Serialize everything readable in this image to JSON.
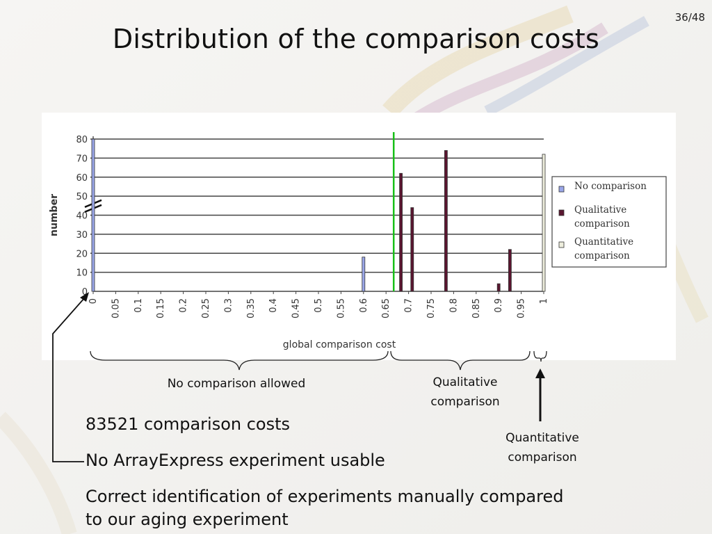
{
  "slide": {
    "page_number": "36/48",
    "title": "Distribution of the comparison costs"
  },
  "annotations": {
    "no_comparison_allowed": "No comparison allowed",
    "qualitative_line1": "Qualitative",
    "qualitative_line2": "comparison",
    "quantitative_line1": "Quantitative",
    "quantitative_line2": "comparison"
  },
  "bullets": [
    "83521 comparison costs",
    "No ArrayExpress experiment usable",
    "Correct identification of experiments manually compared",
    "to our aging experiment"
  ],
  "colors": {
    "no_comparison": "#9aa6e8",
    "qualitative": "#5a1630",
    "quantitative": "#eeeedd",
    "threshold": "#18c018"
  },
  "chart_data": {
    "type": "bar",
    "xlabel": "global comparison cost",
    "ylabel": "number",
    "ylim": [
      0,
      80
    ],
    "yticks": [
      "0",
      "10",
      "20",
      "30",
      "40",
      "50",
      "60",
      "70",
      "80"
    ],
    "categories": [
      "0",
      "0.05",
      "0.1",
      "0.15",
      "0.2",
      "0.25",
      "0.3",
      "0.35",
      "0.4",
      "0.45",
      "0.5",
      "0.55",
      "0.6",
      "0.65",
      "0.7",
      "0.75",
      "0.8",
      "0.85",
      "0.9",
      "0.95",
      "1"
    ],
    "grid": true,
    "y_axis_break": true,
    "legend_position": "right",
    "threshold_x": 0.667,
    "series": [
      {
        "name": "No comparison",
        "color": "#9aa6e8",
        "points": [
          {
            "x": 0,
            "y": 80
          },
          {
            "x": 0.6,
            "y": 18
          }
        ]
      },
      {
        "name": "Qualitative comparison",
        "color": "#5a1630",
        "points": [
          {
            "x": 0.683,
            "y": 62
          },
          {
            "x": 0.708,
            "y": 44
          },
          {
            "x": 0.783,
            "y": 74
          },
          {
            "x": 0.9,
            "y": 4
          },
          {
            "x": 0.925,
            "y": 22
          }
        ]
      },
      {
        "name": "Quantitative comparison",
        "color": "#eeeedd",
        "points": [
          {
            "x": 1.0,
            "y": 72
          }
        ]
      }
    ]
  }
}
